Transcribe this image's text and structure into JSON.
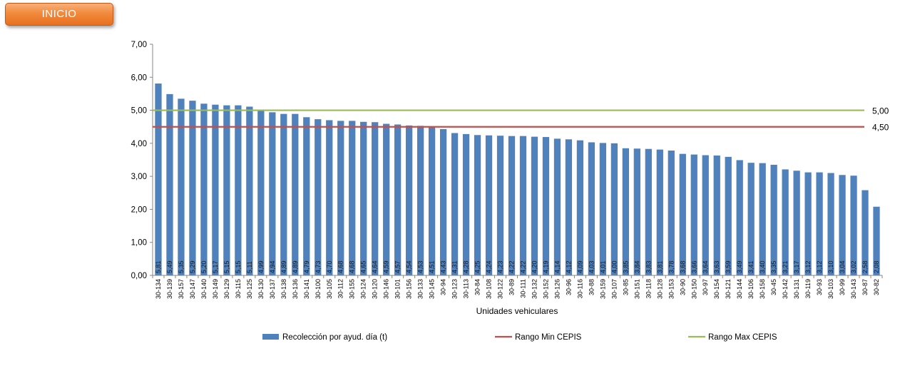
{
  "nav": {
    "inicio_label": "INICIO"
  },
  "colors": {
    "bar": "#4f81bd",
    "min_line": "#c0504d",
    "max_line": "#9bbb59"
  },
  "chart_data": {
    "type": "bar",
    "xlabel": "Unidades vehiculares",
    "ylabel": "",
    "ylim": [
      0,
      7
    ],
    "yticks": [
      "0,00",
      "1,00",
      "2,00",
      "3,00",
      "4,00",
      "5,00",
      "6,00",
      "7,00"
    ],
    "categories": [
      "30-134",
      "30-139",
      "30-157",
      "30-147",
      "30-140",
      "30-149",
      "30-129",
      "30-115",
      "30-125",
      "30-130",
      "30-137",
      "30-138",
      "30-136",
      "30-141",
      "30-100",
      "30-105",
      "30-112",
      "30-155",
      "30-124",
      "30-120",
      "30-146",
      "30-101",
      "30-156",
      "30-133",
      "30-145",
      "30-94",
      "30-123",
      "30-113",
      "30-84",
      "30-108",
      "30-122",
      "30-89",
      "30-111",
      "30-132",
      "30-152",
      "30-126",
      "30-96",
      "30-116",
      "30-88",
      "30-159",
      "30-107",
      "30-85",
      "30-151",
      "30-118",
      "30-128",
      "30-153",
      "30-90",
      "30-150",
      "30-97",
      "30-154",
      "30-121",
      "30-144",
      "30-106",
      "30-158",
      "30-45",
      "30-142",
      "30-131",
      "30-119",
      "30-93",
      "30-103",
      "30-99",
      "30-143",
      "30-87",
      "30-82"
    ],
    "values": [
      5.81,
      5.49,
      5.35,
      5.29,
      5.2,
      5.17,
      5.15,
      5.15,
      5.11,
      4.99,
      4.94,
      4.89,
      4.89,
      4.79,
      4.73,
      4.7,
      4.68,
      4.68,
      4.65,
      4.64,
      4.59,
      4.57,
      4.54,
      4.53,
      4.51,
      4.43,
      4.31,
      4.28,
      4.25,
      4.24,
      4.23,
      4.22,
      4.22,
      4.2,
      4.19,
      4.14,
      4.12,
      4.09,
      4.03,
      4.01,
      4.0,
      3.85,
      3.84,
      3.83,
      3.81,
      3.78,
      3.68,
      3.66,
      3.64,
      3.63,
      3.59,
      3.49,
      3.41,
      3.4,
      3.35,
      3.21,
      3.17,
      3.12,
      3.12,
      3.1,
      3.04,
      3.02,
      2.58,
      2.08
    ],
    "bar_labels": [
      "5,81",
      "5,49",
      "5,35",
      "5,29",
      "5,20",
      "5,17",
      "5,15",
      "5,15",
      "5,11",
      "4,99",
      "4,94",
      "4,89",
      "4,89",
      "4,79",
      "4,73",
      "4,70",
      "4,68",
      "4,68",
      "4,65",
      "4,64",
      "4,59",
      "4,57",
      "4,54",
      "4,53",
      "4,51",
      "4,43",
      "4,31",
      "4,28",
      "4,25",
      "4,24",
      "4,23",
      "4,22",
      "4,22",
      "4,20",
      "4,19",
      "4,14",
      "4,12",
      "4,09",
      "4,03",
      "4,01",
      "4,00",
      "3,85",
      "3,84",
      "3,83",
      "3,81",
      "3,78",
      "3,68",
      "3,66",
      "3,64",
      "3,63",
      "3,59",
      "3,49",
      "3,41",
      "3,40",
      "3,35",
      "3,21",
      "3,17",
      "3,12",
      "3,12",
      "3,10",
      "3,04",
      "3,02",
      "2,58",
      "2,08"
    ],
    "reference_lines": [
      {
        "name": "Rango Min CEPIS",
        "value": 4.5,
        "label": "4,50"
      },
      {
        "name": "Rango Max CEPIS",
        "value": 5.0,
        "label": "5,00"
      }
    ],
    "series": [
      {
        "name": "Recolección por ayud. día (t)"
      },
      {
        "name": "Rango Min CEPIS"
      },
      {
        "name": "Rango Max CEPIS"
      }
    ],
    "grid": false,
    "legend_position": "bottom"
  }
}
